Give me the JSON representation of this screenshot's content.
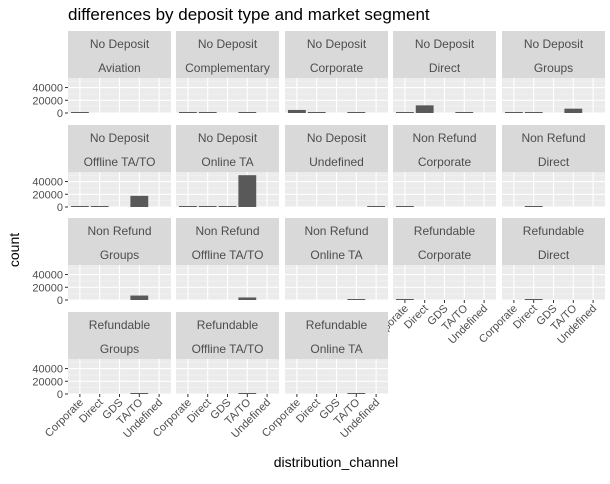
{
  "chart_data": {
    "type": "bar",
    "title": "differences by deposit type and market segment",
    "xlabel": "distribution_channel",
    "ylabel": "count",
    "categories": [
      "Corporate",
      "Direct",
      "GDS",
      "TA/TO",
      "Undefined"
    ],
    "y_ticks": [
      "0",
      "20000",
      "40000"
    ],
    "ylim": [
      0,
      55000
    ],
    "facet_layout": {
      "columns": 5,
      "rows": 4,
      "strip_lines": 2
    },
    "grid": true,
    "panels": [
      {
        "deposit_type": "No Deposit",
        "market_segment": "Aviation",
        "values": [
          200,
          0,
          0,
          0,
          0
        ]
      },
      {
        "deposit_type": "No Deposit",
        "market_segment": "Complementary",
        "values": [
          100,
          500,
          0,
          50,
          0
        ]
      },
      {
        "deposit_type": "No Deposit",
        "market_segment": "Corporate",
        "values": [
          4800,
          200,
          0,
          200,
          0
        ]
      },
      {
        "deposit_type": "No Deposit",
        "market_segment": "Direct",
        "values": [
          100,
          12000,
          0,
          300,
          0
        ]
      },
      {
        "deposit_type": "No Deposit",
        "market_segment": "Groups",
        "values": [
          1200,
          1000,
          0,
          6800,
          0
        ]
      },
      {
        "deposit_type": "No Deposit",
        "market_segment": "Offline TA/TO",
        "values": [
          1000,
          200,
          0,
          17500,
          0
        ]
      },
      {
        "deposit_type": "No Deposit",
        "market_segment": "Online TA",
        "values": [
          300,
          700,
          200,
          50000,
          0
        ]
      },
      {
        "deposit_type": "No Deposit",
        "market_segment": "Undefined",
        "values": [
          0,
          0,
          0,
          0,
          2
        ]
      },
      {
        "deposit_type": "Non Refund",
        "market_segment": "Corporate",
        "values": [
          1500,
          0,
          0,
          0,
          0
        ]
      },
      {
        "deposit_type": "Non Refund",
        "market_segment": "Direct",
        "values": [
          0,
          200,
          0,
          0,
          0
        ]
      },
      {
        "deposit_type": "Non Refund",
        "market_segment": "Groups",
        "values": [
          0,
          0,
          0,
          7000,
          0
        ]
      },
      {
        "deposit_type": "Non Refund",
        "market_segment": "Offline TA/TO",
        "values": [
          0,
          0,
          0,
          4000,
          0
        ]
      },
      {
        "deposit_type": "Non Refund",
        "market_segment": "Online TA",
        "values": [
          0,
          0,
          0,
          100,
          0
        ]
      },
      {
        "deposit_type": "Refundable",
        "market_segment": "Corporate",
        "values": [
          50,
          0,
          0,
          0,
          0
        ]
      },
      {
        "deposit_type": "Refundable",
        "market_segment": "Direct",
        "values": [
          0,
          10,
          0,
          0,
          0
        ]
      },
      {
        "deposit_type": "Refundable",
        "market_segment": "Groups",
        "values": [
          0,
          0,
          0,
          100,
          0
        ]
      },
      {
        "deposit_type": "Refundable",
        "market_segment": "Offline TA/TO",
        "values": [
          0,
          0,
          0,
          50,
          0
        ]
      },
      {
        "deposit_type": "Refundable",
        "market_segment": "Online TA",
        "values": [
          0,
          0,
          0,
          10,
          0
        ]
      }
    ],
    "colors": {
      "bar": "#595959",
      "panel_background": "#ebebeb",
      "strip_background": "#d9d9d9",
      "grid_major": "#ffffff",
      "text": "#333333",
      "axis_text": "#4d4d4d",
      "tick": "#333333"
    }
  }
}
